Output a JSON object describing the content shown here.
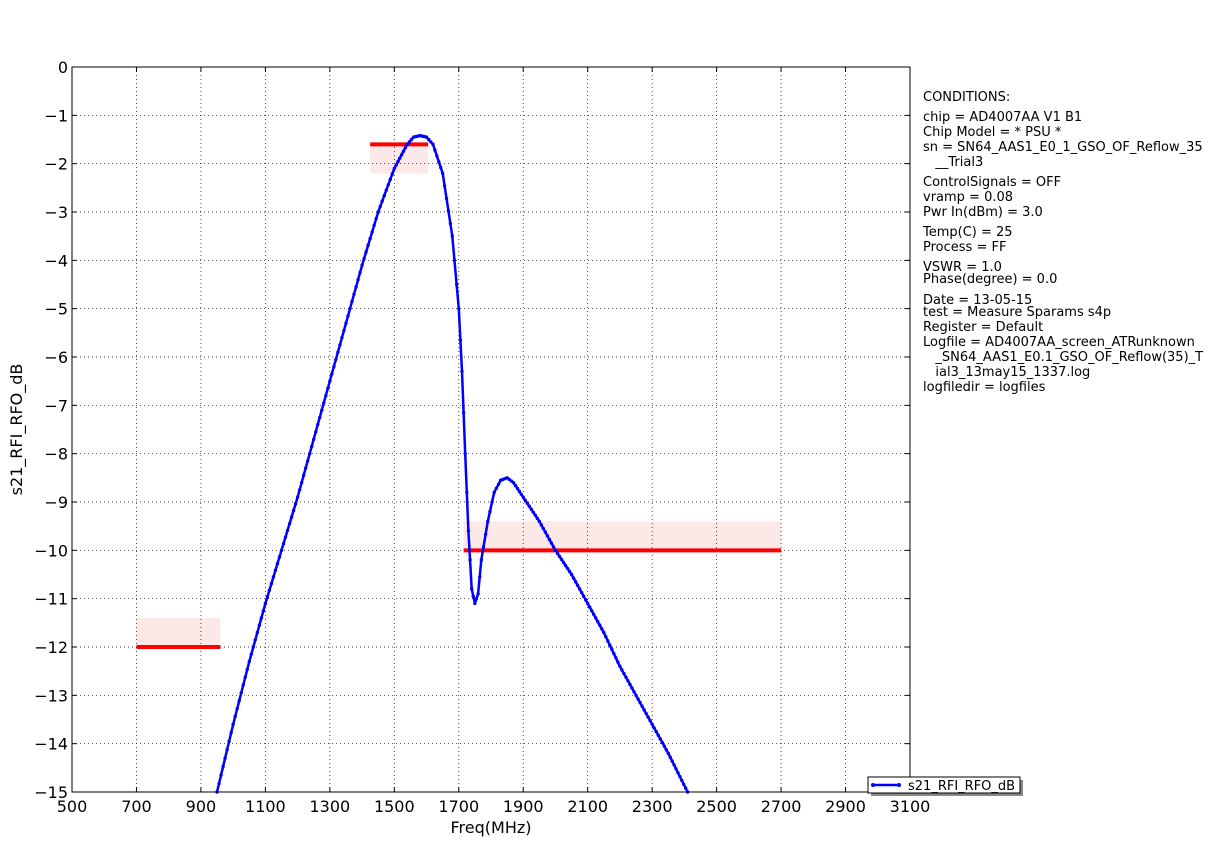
{
  "chart_data": {
    "type": "line",
    "xlabel": "Freq(MHz)",
    "ylabel": "s21_RFI_RFO_dB",
    "xlim": [
      500,
      3100
    ],
    "ylim": [
      -15,
      0
    ],
    "xticks": [
      500,
      700,
      900,
      1100,
      1300,
      1500,
      1700,
      1900,
      2100,
      2300,
      2500,
      2700,
      2900,
      3100
    ],
    "yticks": [
      0,
      -1,
      -2,
      -3,
      -4,
      -5,
      -6,
      -7,
      -8,
      -9,
      -10,
      -11,
      -12,
      -13,
      -14,
      -15
    ],
    "grid": true,
    "legend_position": "lower-right",
    "series": [
      {
        "name": "s21_RFI_RFO_dB",
        "color": "#0000ff",
        "marker": "dot",
        "points": [
          [
            950,
            -15.0
          ],
          [
            1000,
            -13.6
          ],
          [
            1050,
            -12.3
          ],
          [
            1100,
            -11.1
          ],
          [
            1150,
            -10.0
          ],
          [
            1200,
            -8.9
          ],
          [
            1250,
            -7.7
          ],
          [
            1300,
            -6.5
          ],
          [
            1350,
            -5.3
          ],
          [
            1400,
            -4.1
          ],
          [
            1450,
            -3.0
          ],
          [
            1500,
            -2.1
          ],
          [
            1540,
            -1.6
          ],
          [
            1560,
            -1.45
          ],
          [
            1580,
            -1.42
          ],
          [
            1600,
            -1.45
          ],
          [
            1620,
            -1.6
          ],
          [
            1650,
            -2.2
          ],
          [
            1680,
            -3.5
          ],
          [
            1700,
            -5.0
          ],
          [
            1710,
            -6.3
          ],
          [
            1720,
            -8.0
          ],
          [
            1730,
            -9.6
          ],
          [
            1740,
            -10.8
          ],
          [
            1750,
            -11.1
          ],
          [
            1760,
            -10.9
          ],
          [
            1770,
            -10.2
          ],
          [
            1790,
            -9.4
          ],
          [
            1810,
            -8.8
          ],
          [
            1830,
            -8.55
          ],
          [
            1850,
            -8.5
          ],
          [
            1870,
            -8.6
          ],
          [
            1900,
            -8.9
          ],
          [
            1950,
            -9.4
          ],
          [
            2000,
            -10.0
          ],
          [
            2050,
            -10.5
          ],
          [
            2100,
            -11.1
          ],
          [
            2150,
            -11.7
          ],
          [
            2200,
            -12.4
          ],
          [
            2250,
            -13.0
          ],
          [
            2300,
            -13.6
          ],
          [
            2350,
            -14.2
          ],
          [
            2410,
            -15.0
          ]
        ]
      }
    ],
    "limit_lines": [
      {
        "x": [
          700,
          960
        ],
        "y": -12,
        "color": "#ff0000",
        "band": [
          -12,
          -11.4
        ]
      },
      {
        "x": [
          1425,
          1605
        ],
        "y": -1.6,
        "color": "#ff0000",
        "band": [
          -2.2,
          -1.6
        ]
      },
      {
        "x": [
          1715,
          2700
        ],
        "y": -10,
        "color": "#ff0000",
        "band": [
          -10,
          -9.4
        ]
      }
    ],
    "band_color": "#fde8e8"
  },
  "conditions": [
    "CONDITIONS:",
    "chip = AD4007AA V1 B1",
    "Chip Model = * PSU *",
    "sn = SN64_AAS1_E0_1_GSO_OF_Reflow_35",
    "   __Trial3",
    "ControlSignals = OFF",
    "vramp = 0.08",
    "Pwr In(dBm) = 3.0",
    "Temp(C) = 25",
    "Process = FF",
    "VSWR = 1.0",
    "Phase(degree) = 0.0",
    "Date = 13-05-15",
    "test = Measure Sparams s4p",
    "Register = Default",
    "Logfile = AD4007AA_screen_ATRunknown",
    "   _SN64_AAS1_E0.1_GSO_OF_Reflow(35)_T",
    "   ial3_13may15_1337.log",
    "logfiledir = logfiles"
  ]
}
